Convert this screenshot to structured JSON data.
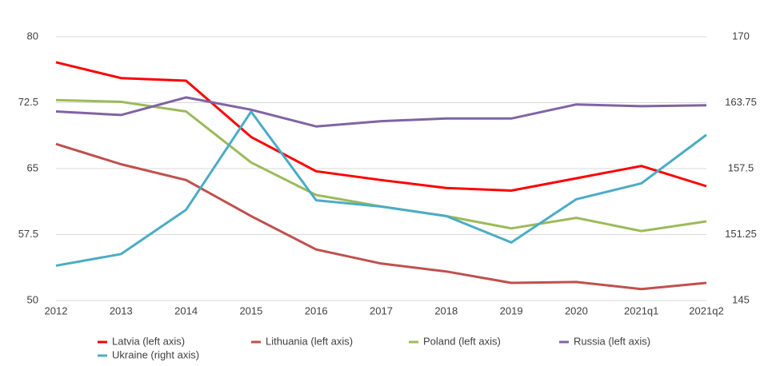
{
  "chart_data": {
    "type": "line",
    "categories": [
      "2012",
      "2013",
      "2014",
      "2015",
      "2016",
      "2017",
      "2018",
      "2019",
      "2020",
      "2021q1",
      "2021q2"
    ],
    "series": [
      {
        "name": "Latvia (left axis)",
        "color": "#ff0000",
        "values": [
          77.1,
          75.3,
          75.0,
          68.6,
          64.7,
          63.7,
          62.8,
          62.5,
          63.9,
          65.3,
          63.0
        ]
      },
      {
        "name": "Lithuania (left axis)",
        "color": "#c0504d",
        "values": [
          67.8,
          65.5,
          63.7,
          59.6,
          55.8,
          54.2,
          53.3,
          52.0,
          52.1,
          51.3,
          52.0
        ]
      },
      {
        "name": "Poland (left axis)",
        "color": "#9bbb59",
        "values": [
          72.8,
          72.6,
          71.5,
          65.7,
          62.0,
          60.7,
          59.6,
          58.2,
          59.4,
          57.9,
          59.0
        ]
      },
      {
        "name": "Russia (left axis)",
        "color": "#8064a2",
        "values": [
          71.5,
          71.1,
          73.1,
          71.7,
          69.8,
          70.4,
          70.7,
          70.7,
          72.3,
          72.1,
          72.2
        ]
      },
      {
        "name": "Ukraine (right axis)",
        "color": "#4bacc6",
        "axis": "y2",
        "values": [
          148.3,
          149.4,
          153.6,
          162.9,
          154.5,
          153.9,
          153.0,
          150.5,
          154.6,
          156.1,
          160.7
        ]
      }
    ],
    "ylim": [
      50,
      80
    ],
    "yticks": [
      50,
      57.5,
      65,
      72.5,
      80
    ],
    "y2lim": [
      145,
      170
    ],
    "y2ticks": [
      145,
      151.25,
      157.5,
      163.75,
      170
    ],
    "grid": true,
    "legend": "bottom"
  }
}
